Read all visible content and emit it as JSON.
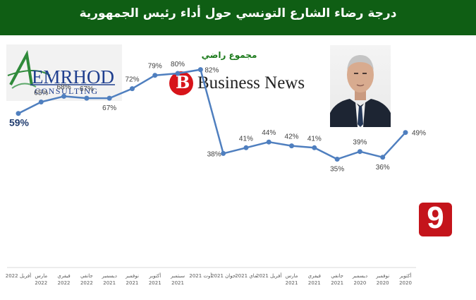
{
  "header": {
    "title": "درجة رضاء الشارع التونسي حول أداء رئيس الجمهورية"
  },
  "branding": {
    "emrhod_name": "EMRHOD",
    "emrhod_sub": "CONSULTING",
    "bn_letter": "B",
    "bn_name": "Business News",
    "channel_number": "9"
  },
  "portrait": {
    "icon": "person-portrait-photo"
  },
  "colors": {
    "header": "#0f5e14",
    "line": "#4f7fbf",
    "subtitle": "#1b7a1b",
    "channel": "#c4141b"
  },
  "chart_data": {
    "type": "line",
    "title": "مجموع راضي",
    "xlabel": "",
    "ylabel": "",
    "ylim": [
      0,
      100
    ],
    "grid": false,
    "legend": "none",
    "x_direction": "right-to-left",
    "categories": [
      "أفريل 2022",
      "مارس 2022",
      "فيفري 2022",
      "جانفي 2022",
      "ديسمبر 2021",
      "نوفمبر 2021",
      "أكتوبر 2021",
      "سبتمبر 2021",
      "أوت 2021",
      "جوان 2021",
      "ماي 2021",
      "أفريل 2021",
      "مارس 2021",
      "فيفري 2021",
      "جانفي 2021",
      "ديسمبر 2020",
      "نوفمبر 2020",
      "أكتوبر 2020"
    ],
    "tick_lines": [
      [
        "أفريل 2022",
        ""
      ],
      [
        "مارس",
        "2022"
      ],
      [
        "فيفري",
        "2022"
      ],
      [
        "جانفي",
        "2022"
      ],
      [
        "ديسمبر",
        "2021"
      ],
      [
        "نوفمبر",
        "2021"
      ],
      [
        "أكتوبر",
        "2021"
      ],
      [
        "سبتمبر",
        "2021"
      ],
      [
        "أوت 2021",
        ""
      ],
      [
        "جوان 2021",
        ""
      ],
      [
        "ماي 2021",
        ""
      ],
      [
        "أفريل 2021",
        ""
      ],
      [
        "مارس",
        "2021"
      ],
      [
        "فيفري",
        "2021"
      ],
      [
        "جانفي",
        "2021"
      ],
      [
        "ديسمبر",
        "2020"
      ],
      [
        "نوفمبر",
        "2020"
      ],
      [
        "أكتوبر",
        "2020"
      ]
    ],
    "values": [
      59,
      65,
      68,
      67,
      67,
      72,
      79,
      80,
      82,
      38,
      41,
      44,
      42,
      41,
      35,
      39,
      36,
      49
    ],
    "data_labels": [
      "59%",
      "65%",
      "68%",
      "67%",
      "67%",
      "72%",
      "79%",
      "80%",
      "82%",
      "38%",
      "41%",
      "44%",
      "42%",
      "41%",
      "35%",
      "39%",
      "36%",
      "49%"
    ],
    "highlight_index": 0
  }
}
